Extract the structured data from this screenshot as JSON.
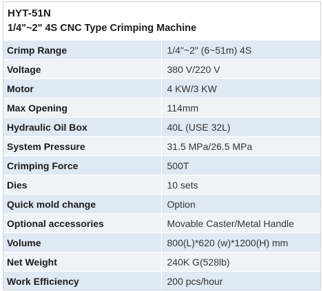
{
  "header": {
    "model": "HYT-51N",
    "subtitle": "1/4\"~2\" 4S CNC Type Crimping Machine"
  },
  "colors": {
    "row_shade_a": "#dfe9f3",
    "row_shade_b": "#eef3f8",
    "border": "#c9d3dd"
  },
  "specs": [
    {
      "label": "Crimp Range",
      "value": "1/4\"~2\" (6~51m) 4S"
    },
    {
      "label": "Voltage",
      "value": "380 V/220 V"
    },
    {
      "label": "Motor",
      "value": "4 KW/3 KW"
    },
    {
      "label": "Max Opening",
      "value": "114mm"
    },
    {
      "label": "Hydraulic Oil Box",
      "value": "40L (USE 32L)"
    },
    {
      "label": "System Pressure",
      "value": "31.5 MPa/26.5 MPa"
    },
    {
      "label": "Crimping Force",
      "value": "500T"
    },
    {
      "label": "Dies",
      "value": "10 sets"
    },
    {
      "label": "Quick mold change",
      "value": "Option"
    },
    {
      "label": "Optional accessories",
      "value": "Movable Caster/Metal Handle"
    },
    {
      "label": "Volume",
      "value": "800(L)*620 (w)*1200(H) mm"
    },
    {
      "label": "Net Weight",
      "value": "240K G(528lb)"
    },
    {
      "label": "Work Efficiency",
      "value": "200 pcs/hour"
    }
  ]
}
